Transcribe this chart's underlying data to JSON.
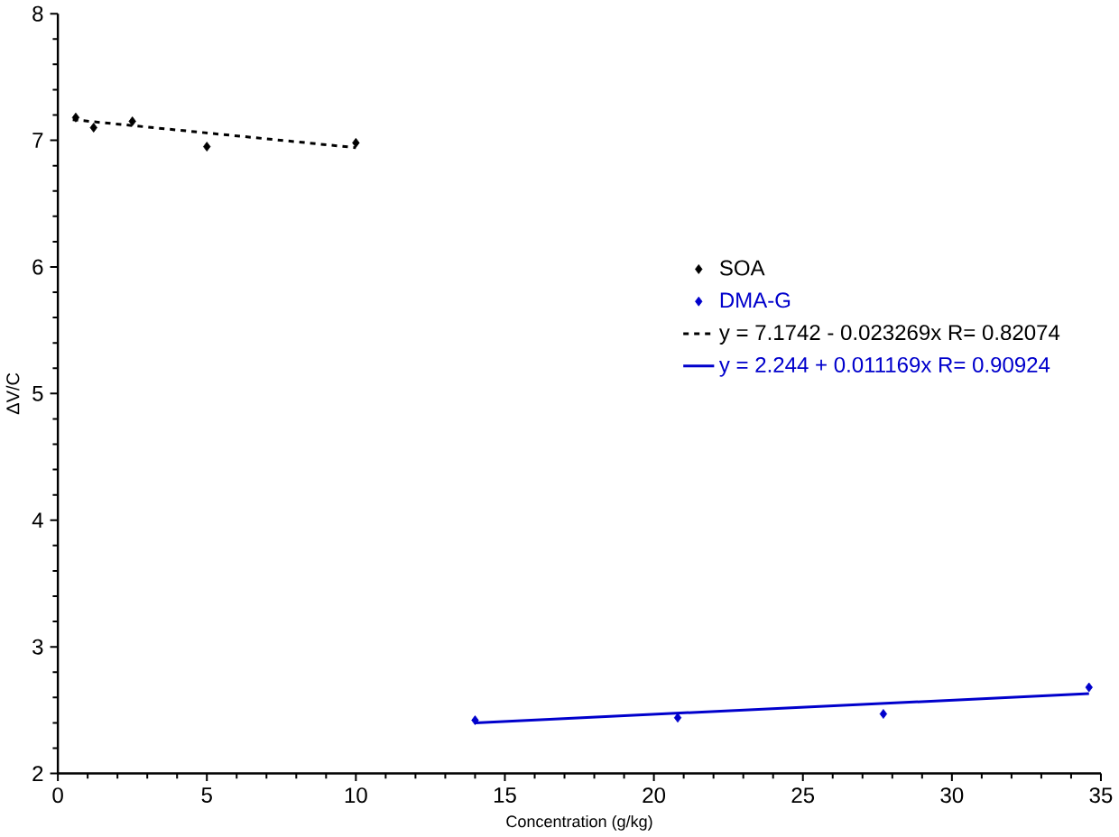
{
  "chart_data": {
    "type": "scatter",
    "xlabel": "Concentration (g/kg)",
    "ylabel": "ΔV/C",
    "xlim": [
      0,
      35
    ],
    "ylim": [
      2,
      8
    ],
    "xticks": [
      0,
      5,
      10,
      15,
      20,
      25,
      30,
      35
    ],
    "yticks": [
      2,
      3,
      4,
      5,
      6,
      7,
      8
    ],
    "grid": false,
    "legend": "right",
    "marker": "diamond",
    "series": [
      {
        "name": "SOA",
        "color": "#000000",
        "x": [
          0.6,
          1.2,
          2.5,
          5,
          10
        ],
        "values": [
          7.18,
          7.1,
          7.15,
          6.95,
          6.98
        ]
      },
      {
        "name": "DMA-G",
        "color": "#0000cc",
        "x": [
          14,
          20.8,
          27.7,
          34.6
        ],
        "values": [
          2.42,
          2.44,
          2.47,
          2.68
        ]
      },
      {
        "name": "y = 7.1742 - 0.023269x R= 0.82074",
        "type": "line",
        "line_style": "dashed",
        "marker": "none",
        "color": "#000000",
        "x": [
          0.5,
          10
        ],
        "values": [
          7.163,
          6.942
        ]
      },
      {
        "name": "y = 2.244 + 0.011169x R= 0.90924",
        "type": "line",
        "line_style": "solid",
        "marker": "none",
        "color": "#0000cc",
        "x": [
          14,
          34.6
        ],
        "values": [
          2.4,
          2.63
        ]
      }
    ]
  }
}
